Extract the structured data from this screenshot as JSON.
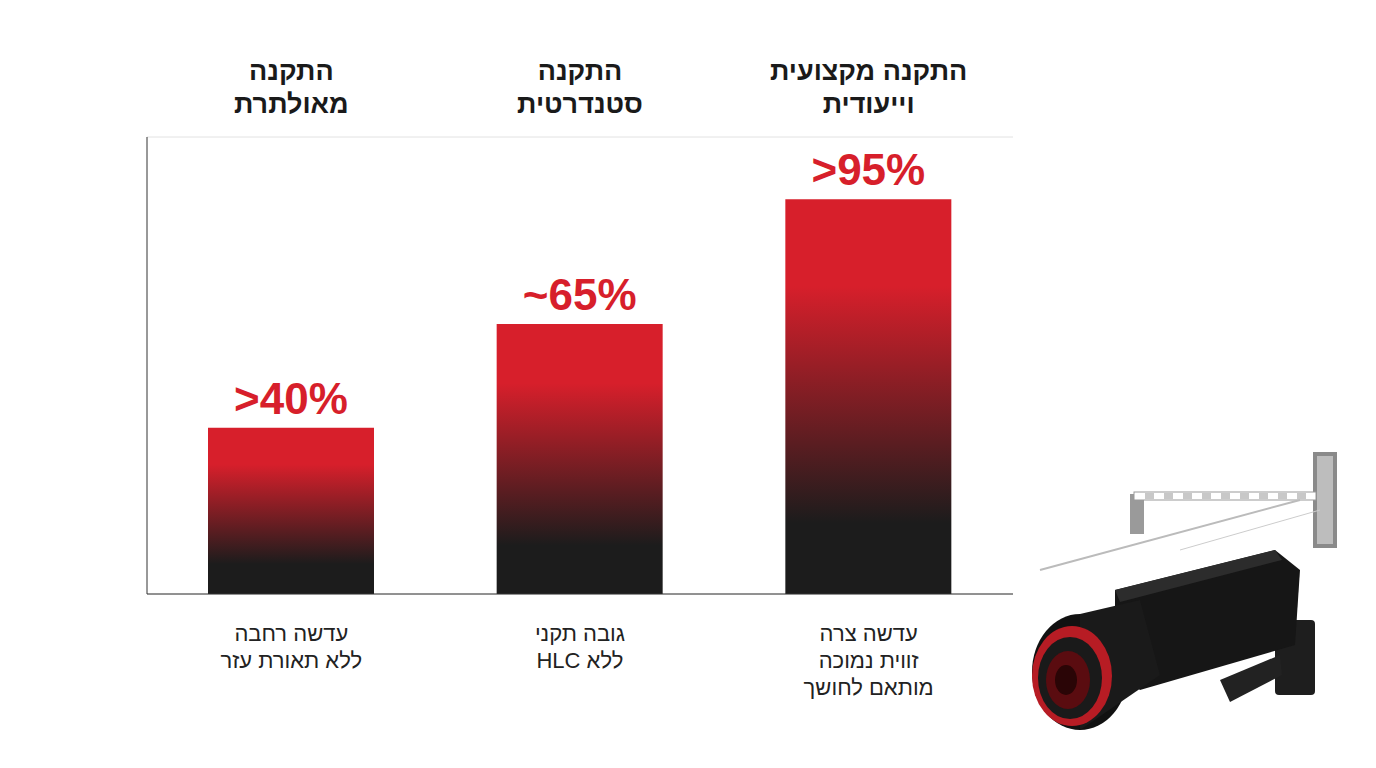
{
  "chart_data": {
    "type": "bar",
    "categories": [
      "התקנה\nמאולתרת",
      "התקנה\nסטנדרטית",
      "התקנה מקצועית\nוייעודית"
    ],
    "annotations": [
      "עדשה רחבה\nללא תאורת עזר",
      "גובה תקני\nללא HLC",
      "עדשה צרה\nזווית נמוכה\nמותאם לחושך"
    ],
    "values": [
      40,
      65,
      95
    ],
    "value_labels": [
      ">40%",
      "~65%",
      ">95%"
    ],
    "data_labels": true,
    "color": "#d71f2b",
    "ylim": [
      0,
      110
    ],
    "yticks": [
      0,
      10,
      20,
      30,
      40,
      50,
      60,
      70,
      80,
      90,
      100,
      110
    ],
    "grid": true,
    "tick_labels": false
  }
}
